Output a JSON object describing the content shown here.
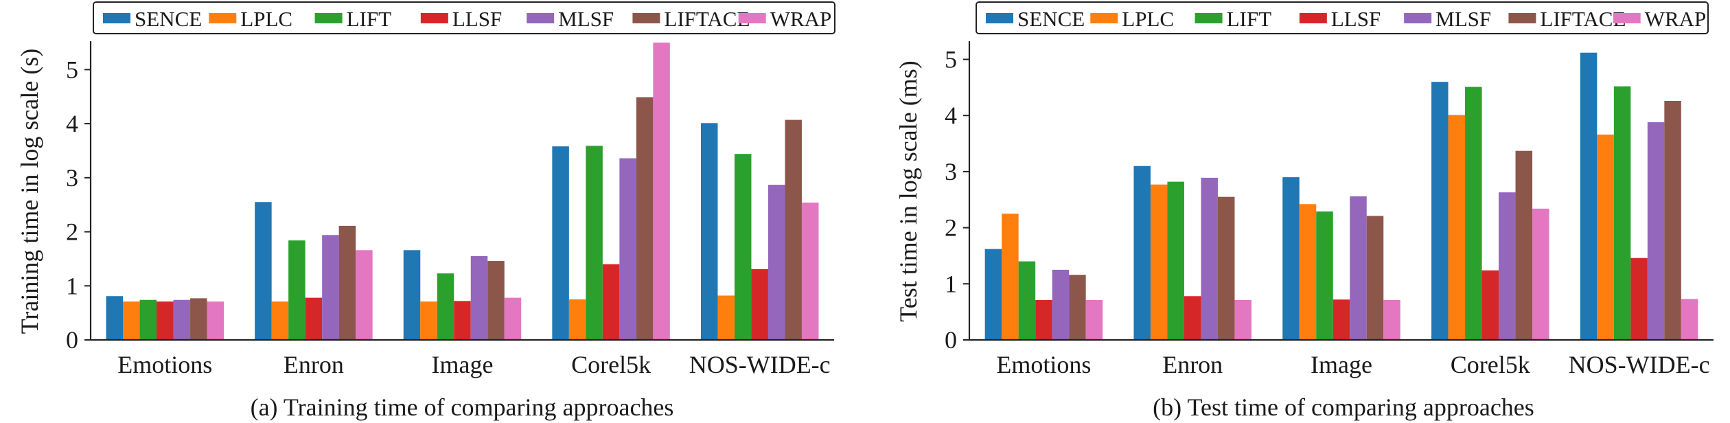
{
  "chart_data": [
    {
      "type": "bar",
      "title": "",
      "caption": "(a) Training time of comparing approaches",
      "xlabel": "",
      "ylabel": "Training time in log scale (s)",
      "ylim": [
        0,
        5.5
      ],
      "yticks": [
        0,
        1,
        2,
        3,
        4,
        5
      ],
      "grid": false,
      "legend": "top",
      "categories": [
        "Emotions",
        "Enron",
        "Image",
        "Corel5k",
        "NOS-WIDE-c"
      ],
      "series": [
        {
          "name": "SENCE",
          "color": "#1f77b4",
          "values": [
            0.81,
            2.55,
            1.66,
            3.58,
            4.01
          ]
        },
        {
          "name": "LPLC",
          "color": "#ff7f0e",
          "values": [
            0.71,
            0.71,
            0.71,
            0.75,
            0.82
          ]
        },
        {
          "name": "LIFT",
          "color": "#2ca02c",
          "values": [
            0.74,
            1.84,
            1.23,
            3.59,
            3.44
          ]
        },
        {
          "name": "LLSF",
          "color": "#d62728",
          "values": [
            0.71,
            0.78,
            0.72,
            1.4,
            1.31
          ]
        },
        {
          "name": "MLSF",
          "color": "#9467bd",
          "values": [
            0.74,
            1.94,
            1.55,
            3.36,
            2.87
          ]
        },
        {
          "name": "LIFTACE",
          "color": "#8c564b",
          "values": [
            0.77,
            2.11,
            1.46,
            4.49,
            4.07
          ]
        },
        {
          "name": "WRAP",
          "color": "#e377c2",
          "values": [
            0.71,
            1.66,
            0.78,
            5.5,
            2.54
          ]
        }
      ]
    },
    {
      "type": "bar",
      "title": "",
      "caption": "(b) Test time of comparing approaches",
      "xlabel": "",
      "ylabel": "Test time in log scale (ms)",
      "ylim": [
        0,
        5.3
      ],
      "yticks": [
        0,
        1,
        2,
        3,
        4,
        5
      ],
      "grid": false,
      "legend": "top",
      "categories": [
        "Emotions",
        "Enron",
        "Image",
        "Corel5k",
        "NOS-WIDE-c"
      ],
      "series": [
        {
          "name": "SENCE",
          "color": "#1f77b4",
          "values": [
            1.62,
            3.1,
            2.9,
            4.6,
            5.12
          ]
        },
        {
          "name": "LPLC",
          "color": "#ff7f0e",
          "values": [
            2.25,
            2.77,
            2.42,
            4.01,
            3.66
          ]
        },
        {
          "name": "LIFT",
          "color": "#2ca02c",
          "values": [
            1.4,
            2.82,
            2.29,
            4.51,
            4.52
          ]
        },
        {
          "name": "LLSF",
          "color": "#d62728",
          "values": [
            0.71,
            0.78,
            0.72,
            1.24,
            1.46
          ]
        },
        {
          "name": "MLSF",
          "color": "#9467bd",
          "values": [
            1.25,
            2.89,
            2.56,
            2.63,
            3.88
          ]
        },
        {
          "name": "LIFTACE",
          "color": "#8c564b",
          "values": [
            1.16,
            2.55,
            2.21,
            3.37,
            4.26
          ]
        },
        {
          "name": "WRAP",
          "color": "#e377c2",
          "values": [
            0.71,
            0.71,
            0.71,
            2.34,
            0.73
          ]
        }
      ]
    }
  ]
}
